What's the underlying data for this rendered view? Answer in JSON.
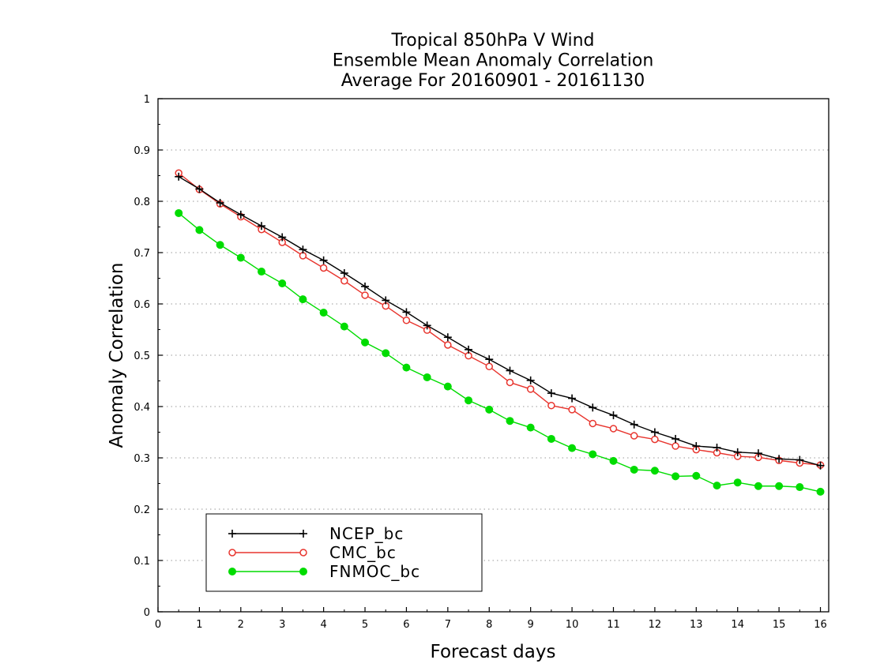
{
  "chart_data": {
    "type": "line",
    "title": [
      "Tropical 850hPa V Wind",
      "Ensemble Mean Anomaly Correlation",
      "Average For 20160901 - 20161130"
    ],
    "xlabel": "Forecast days",
    "ylabel": "Anomaly Correlation",
    "xlim": [
      0,
      16.2
    ],
    "ylim": [
      0,
      1
    ],
    "xticks": [
      0,
      1,
      2,
      3,
      4,
      5,
      6,
      7,
      8,
      9,
      10,
      11,
      12,
      13,
      14,
      15,
      16
    ],
    "xtick_labels": [
      "0",
      "1",
      "2",
      "3",
      "4",
      "5",
      "6",
      "7",
      "8",
      "9",
      "10",
      "11",
      "12",
      "13",
      "14",
      "15",
      "16"
    ],
    "yticks": [
      0,
      0.1,
      0.2,
      0.3,
      0.4,
      0.5,
      0.6,
      0.7,
      0.8,
      0.9,
      1
    ],
    "ytick_labels": [
      "0",
      "0.1",
      "0.2",
      "0.3",
      "0.4",
      "0.5",
      "0.6",
      "0.7",
      "0.8",
      "0.9",
      "1"
    ],
    "grid": "horizontal-dotted",
    "legend_position": "bottom-left",
    "x": [
      0.5,
      1,
      1.5,
      2,
      2.5,
      3,
      3.5,
      4,
      4.5,
      5,
      5.5,
      6,
      6.5,
      7,
      7.5,
      8,
      8.5,
      9,
      9.5,
      10,
      10.5,
      11,
      11.5,
      12,
      12.5,
      13,
      13.5,
      14,
      14.5,
      15,
      15.5,
      16
    ],
    "series": [
      {
        "name": "NCEP_bc",
        "color": "#000000",
        "marker": "plus",
        "values": [
          0.848,
          0.824,
          0.797,
          0.774,
          0.752,
          0.73,
          0.706,
          0.685,
          0.66,
          0.634,
          0.607,
          0.584,
          0.558,
          0.535,
          0.511,
          0.492,
          0.47,
          0.451,
          0.426,
          0.416,
          0.398,
          0.383,
          0.365,
          0.35,
          0.337,
          0.323,
          0.32,
          0.311,
          0.309,
          0.298,
          0.296,
          0.285
        ]
      },
      {
        "name": "CMC_bc",
        "color": "#e8352e",
        "marker": "open-circle",
        "values": [
          0.855,
          0.823,
          0.795,
          0.77,
          0.745,
          0.72,
          0.694,
          0.67,
          0.645,
          0.617,
          0.596,
          0.568,
          0.549,
          0.52,
          0.499,
          0.478,
          0.447,
          0.434,
          0.402,
          0.394,
          0.367,
          0.357,
          0.343,
          0.336,
          0.323,
          0.316,
          0.31,
          0.303,
          0.301,
          0.295,
          0.29,
          0.286
        ]
      },
      {
        "name": "FNMOC_bc",
        "color": "#00dc00",
        "marker": "filled-circle",
        "values": [
          0.777,
          0.744,
          0.715,
          0.69,
          0.663,
          0.64,
          0.609,
          0.583,
          0.556,
          0.525,
          0.504,
          0.476,
          0.457,
          0.439,
          0.412,
          0.394,
          0.372,
          0.359,
          0.337,
          0.319,
          0.307,
          0.294,
          0.277,
          0.275,
          0.264,
          0.265,
          0.246,
          0.252,
          0.245,
          0.245,
          0.243,
          0.234
        ]
      }
    ]
  }
}
